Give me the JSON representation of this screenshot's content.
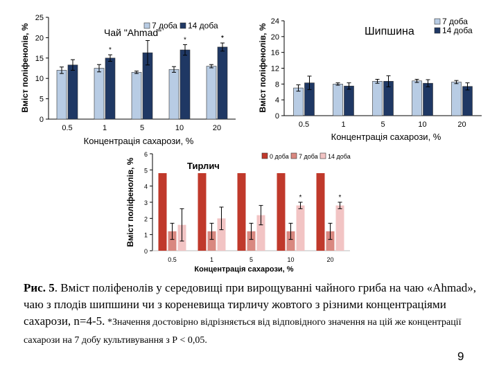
{
  "colors": {
    "ahmad_7": "#b8cce4",
    "ahmad_14": "#1f3864",
    "tyrlych_0": "#c0392b",
    "tyrlych_7": "#d98880",
    "tyrlych_14": "#f2c4c4"
  },
  "chart_data": [
    {
      "type": "bar",
      "title": "Чай \"Ahmad\"",
      "ylabel": "Вміст поліфенолів, %",
      "xlabel": "Концентрація сахарози, %",
      "categories": [
        "0.5",
        "1",
        "5",
        "10",
        "20"
      ],
      "ylim": [
        0,
        25
      ],
      "yticks": [
        "0",
        "5",
        "10",
        "15",
        "20",
        "25"
      ],
      "legend": "top-right",
      "series": [
        {
          "name": "7 доба",
          "values": [
            12,
            12.5,
            11.5,
            12.2,
            13
          ],
          "errors": [
            0.8,
            0.9,
            0.3,
            0.7,
            0.4
          ]
        },
        {
          "name": "14 доба",
          "values": [
            13.3,
            15,
            16.3,
            17,
            17.7
          ],
          "errors": [
            1.3,
            0.8,
            3.0,
            1.3,
            1.0
          ]
        }
      ],
      "annotations": [
        "*",
        "*",
        "*",
        "*"
      ]
    },
    {
      "type": "bar",
      "title": "Шипшина",
      "ylabel": "Вміст поліфенолів, %",
      "xlabel": "Концентрація сахарози, %",
      "categories": [
        "0.5",
        "1",
        "5",
        "10",
        "20"
      ],
      "ylim": [
        0,
        24
      ],
      "yticks": [
        "0",
        "4",
        "8",
        "12",
        "16",
        "20",
        "24"
      ],
      "legend": "top-right",
      "series": [
        {
          "name": "7 доба",
          "values": [
            7,
            8,
            8.7,
            8.8,
            8.5
          ],
          "errors": [
            0.8,
            0.3,
            0.5,
            0.4,
            0.4
          ]
        },
        {
          "name": "14 доба",
          "values": [
            8.3,
            7.5,
            8.7,
            8.2,
            7.4
          ],
          "errors": [
            1.7,
            0.8,
            1.4,
            0.9,
            0.9
          ]
        }
      ]
    },
    {
      "type": "bar",
      "title": "Тирлич",
      "ylabel": "Вміст поліфенолів, %",
      "xlabel": "Концентрація сахарози, %",
      "categories": [
        "0.5",
        "1",
        "5",
        "10",
        "20"
      ],
      "ylim": [
        0,
        6
      ],
      "yticks": [
        "0",
        "1",
        "2",
        "3",
        "4",
        "5",
        "6"
      ],
      "legend": "top-right",
      "series": [
        {
          "name": "0 доба",
          "values": [
            4.8,
            4.8,
            4.8,
            4.8,
            4.8
          ],
          "errors": [
            0,
            0,
            0,
            0,
            0
          ]
        },
        {
          "name": "7 доба",
          "values": [
            1.2,
            1.2,
            1.2,
            1.2,
            1.2
          ],
          "errors": [
            0.5,
            0.5,
            0.5,
            0.5,
            0.5
          ]
        },
        {
          "name": "14 доба",
          "values": [
            1.6,
            2.0,
            2.2,
            2.8,
            2.8
          ],
          "errors": [
            1.0,
            0.7,
            0.6,
            0.2,
            0.2
          ]
        }
      ],
      "annotations": [
        "*",
        "*"
      ]
    }
  ],
  "caption": {
    "label": "Рис. 5",
    "text": ". Вміст  поліфенолів у середовищі при вирощуванні чайного гриба на чаю «Ahmad», чаю з  плодів шипшини чи з кореневища тирличу жовтого з різними концентраціями сахарози, n=4-5.",
    "note": " *Значення достовірно відрізняється від відповідного значення на цій же концентрації сахарози на 7 добу культивування з Р < 0,05."
  },
  "page_number": "9"
}
